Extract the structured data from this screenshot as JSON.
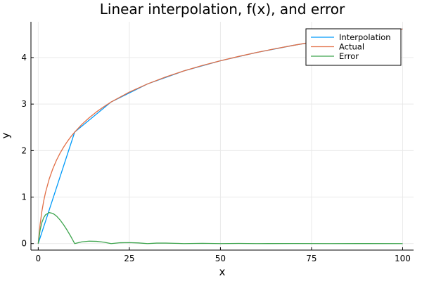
{
  "chart_data": {
    "type": "line",
    "title": "Linear interpolation, f(x), and error",
    "xlabel": "x",
    "ylabel": "y",
    "xlim": [
      -2,
      103
    ],
    "ylim": [
      -0.14,
      4.77
    ],
    "grid": true,
    "legend_position": "top-right",
    "x_ticks": [
      0,
      25,
      50,
      75,
      100
    ],
    "x_tick_labels": [
      "0",
      "25",
      "50",
      "75",
      "100"
    ],
    "y_ticks": [
      0,
      1,
      2,
      3,
      4
    ],
    "y_tick_labels": [
      "0",
      "1",
      "2",
      "3",
      "4"
    ],
    "series": [
      {
        "name": "Interpolation",
        "color": "#009af9",
        "x": [
          0,
          10,
          20,
          30,
          40,
          50,
          60,
          70,
          80,
          90,
          100
        ],
        "y": [
          0,
          2.398,
          3.045,
          3.434,
          3.714,
          3.932,
          4.111,
          4.263,
          4.394,
          4.511,
          4.615
        ]
      },
      {
        "name": "Actual",
        "color": "#e26f46",
        "x": [
          0,
          0.5,
          1,
          1.5,
          2,
          3,
          4,
          5,
          6,
          7,
          8,
          9,
          10,
          12,
          14,
          16,
          18,
          20,
          25,
          30,
          35,
          40,
          45,
          50,
          55,
          60,
          65,
          70,
          75,
          80,
          85,
          90,
          95,
          100
        ],
        "y": [
          0,
          0.405,
          0.693,
          0.916,
          1.099,
          1.386,
          1.609,
          1.792,
          1.946,
          2.079,
          2.197,
          2.303,
          2.398,
          2.565,
          2.708,
          2.833,
          2.944,
          3.045,
          3.258,
          3.434,
          3.584,
          3.714,
          3.829,
          3.932,
          4.025,
          4.111,
          4.19,
          4.263,
          4.331,
          4.394,
          4.454,
          4.511,
          4.564,
          4.615
        ]
      },
      {
        "name": "Error",
        "color": "#3da44d",
        "x": [
          0,
          0.5,
          1,
          1.5,
          2,
          3,
          4,
          5,
          6,
          7,
          8,
          9,
          10,
          12,
          14,
          16,
          18,
          20,
          22.5,
          25,
          27.5,
          30,
          32.5,
          35,
          37.5,
          40,
          45,
          50,
          55,
          60,
          70,
          80,
          90,
          100
        ],
        "y": [
          0,
          0.285,
          0.453,
          0.556,
          0.619,
          0.667,
          0.65,
          0.593,
          0.507,
          0.4,
          0.279,
          0.145,
          0,
          0.038,
          0.052,
          0.048,
          0.03,
          0,
          0.018,
          0.02,
          0.014,
          0,
          0.01,
          0.01,
          0.006,
          0,
          0.005,
          0,
          0.003,
          0,
          0.002,
          0,
          0.001,
          0
        ]
      }
    ]
  }
}
